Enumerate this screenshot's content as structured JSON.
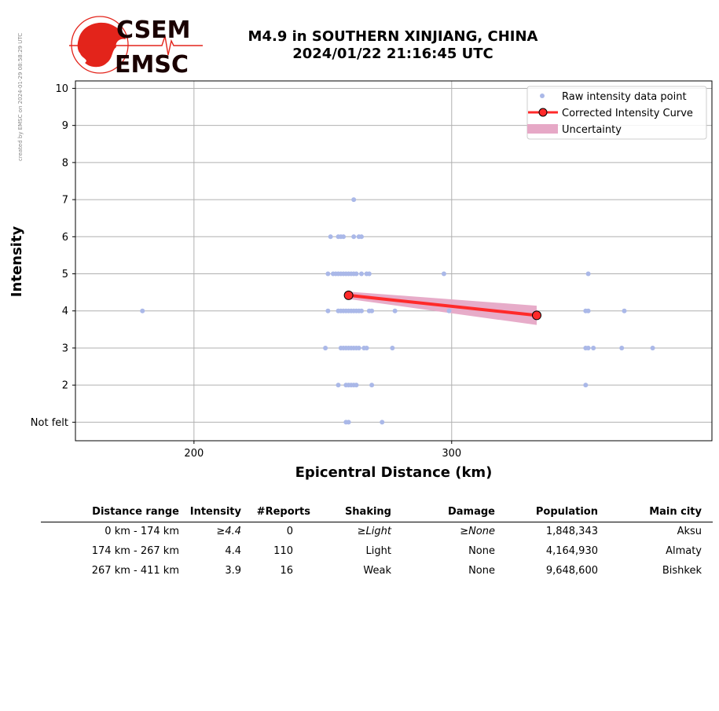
{
  "header": {
    "created_note": "created by EMSC on 2024-01-29 08:58:29 UTC",
    "logo_top": "CSEM",
    "logo_bottom": "EMSC",
    "title_line1": "M4.9 in SOUTHERN XINJIANG, CHINA",
    "title_line2": "2024/01/22 21:16:45 UTC"
  },
  "colors": {
    "raw_points": "#aab8e8",
    "curve": "#ff2a2a",
    "uncertainty": "#e6a8c6",
    "grid": "#b0b0b0",
    "logo_red": "#e3241b"
  },
  "chart_data": {
    "type": "scatter",
    "xlabel": "Epicentral Distance (km)",
    "ylabel": "Intensity",
    "xlim": [
      154,
      401
    ],
    "ylim": [
      0.5,
      10.2
    ],
    "xticks": [
      200,
      300
    ],
    "yticks": [
      1,
      2,
      3,
      4,
      5,
      6,
      7,
      8,
      9,
      10
    ],
    "ytick_labels": [
      "Not felt",
      "2",
      "3",
      "4",
      "5",
      "6",
      "7",
      "8",
      "9",
      "10"
    ],
    "grid": true,
    "legend_position": "top-right",
    "legend": [
      "Raw intensity data point",
      "Corrected Intensity Curve",
      "Uncertainty"
    ],
    "raw_points": [
      [
        262,
        7
      ],
      [
        253,
        6
      ],
      [
        256,
        6
      ],
      [
        257,
        6
      ],
      [
        258,
        6
      ],
      [
        262,
        6
      ],
      [
        264,
        6
      ],
      [
        265,
        6
      ],
      [
        252,
        5
      ],
      [
        254,
        5
      ],
      [
        255,
        5
      ],
      [
        256,
        5
      ],
      [
        257,
        5
      ],
      [
        258,
        5
      ],
      [
        259,
        5
      ],
      [
        260,
        5
      ],
      [
        261,
        5
      ],
      [
        262,
        5
      ],
      [
        263,
        5
      ],
      [
        265,
        5
      ],
      [
        267,
        5
      ],
      [
        268,
        5
      ],
      [
        297,
        5
      ],
      [
        353,
        5
      ],
      [
        180,
        4
      ],
      [
        252,
        4
      ],
      [
        256,
        4
      ],
      [
        257,
        4
      ],
      [
        258,
        4
      ],
      [
        259,
        4
      ],
      [
        260,
        4
      ],
      [
        261,
        4
      ],
      [
        262,
        4
      ],
      [
        263,
        4
      ],
      [
        264,
        4
      ],
      [
        265,
        4
      ],
      [
        268,
        4
      ],
      [
        269,
        4
      ],
      [
        278,
        4
      ],
      [
        299,
        4
      ],
      [
        352,
        4
      ],
      [
        353,
        4
      ],
      [
        367,
        4
      ],
      [
        251,
        3
      ],
      [
        257,
        3
      ],
      [
        258,
        3
      ],
      [
        259,
        3
      ],
      [
        260,
        3
      ],
      [
        261,
        3
      ],
      [
        262,
        3
      ],
      [
        263,
        3
      ],
      [
        264,
        3
      ],
      [
        266,
        3
      ],
      [
        267,
        3
      ],
      [
        277,
        3
      ],
      [
        352,
        3
      ],
      [
        353,
        3
      ],
      [
        355,
        3
      ],
      [
        366,
        3
      ],
      [
        378,
        3
      ],
      [
        256,
        2
      ],
      [
        259,
        2
      ],
      [
        260,
        2
      ],
      [
        261,
        2
      ],
      [
        262,
        2
      ],
      [
        263,
        2
      ],
      [
        269,
        2
      ],
      [
        352,
        2
      ],
      [
        259,
        1
      ],
      [
        260,
        1
      ],
      [
        273,
        1
      ]
    ],
    "corrected_curve": [
      {
        "distance": 260,
        "intensity": 4.42
      },
      {
        "distance": 333,
        "intensity": 3.88
      }
    ],
    "uncertainty_band": [
      {
        "distance": 260,
        "low": 4.32,
        "high": 4.52
      },
      {
        "distance": 333,
        "low": 3.62,
        "high": 4.14
      }
    ]
  },
  "table": {
    "headers": [
      "Distance range",
      "Intensity",
      "#Reports",
      "Shaking",
      "Damage",
      "Population",
      "Main city"
    ],
    "rows": [
      {
        "range": "0 km -  174 km",
        "intensity": "≥4.4",
        "reports": "0",
        "shaking": "≥Light",
        "damage": "≥None",
        "population": "1,848,343",
        "city": "Aksu"
      },
      {
        "range": "174 km -  267 km",
        "intensity": "4.4",
        "reports": "110",
        "shaking": "Light",
        "damage": "None",
        "population": "4,164,930",
        "city": "Almaty"
      },
      {
        "range": "267 km -  411 km",
        "intensity": "3.9",
        "reports": "16",
        "shaking": "Weak",
        "damage": "None",
        "population": "9,648,600",
        "city": "Bishkek"
      }
    ]
  }
}
